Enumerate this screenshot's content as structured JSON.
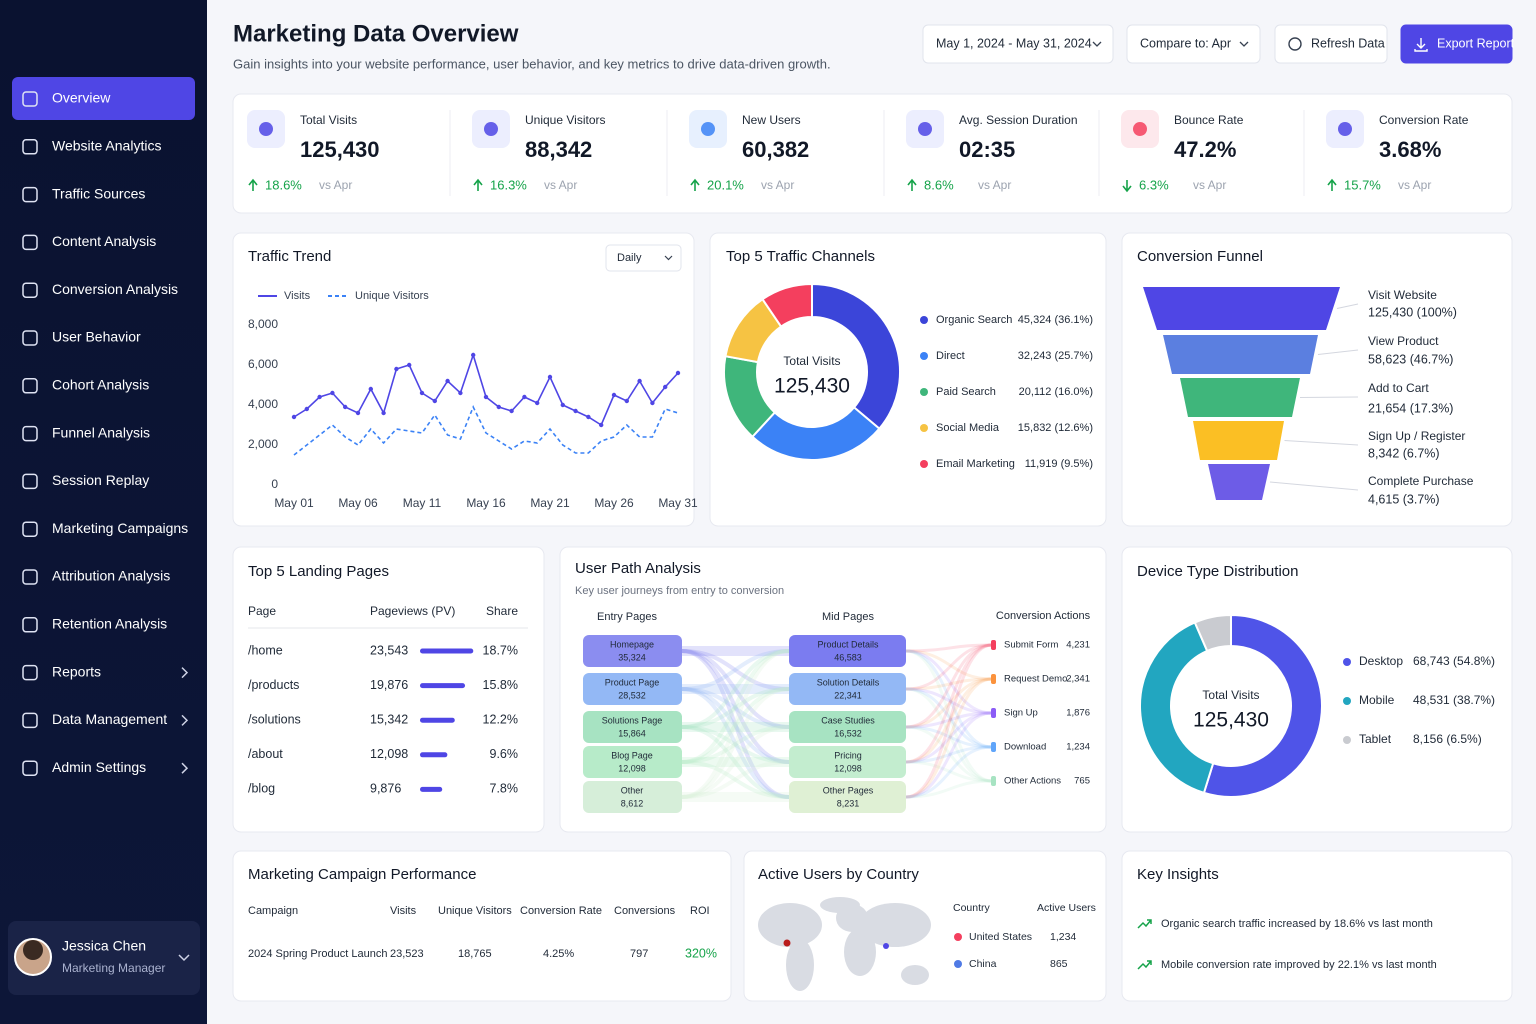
{
  "sidebar": {
    "nav": [
      "Overview",
      "Website Analytics",
      "Traffic Sources",
      "Content Analysis",
      "Conversion Analysis",
      "User Behavior",
      "Cohort Analysis",
      "Funnel Analysis",
      "Session Replay",
      "Marketing Campaigns",
      "Attribution Analysis",
      "Retention Analysis",
      "Reports",
      "Data Management",
      "Admin Settings"
    ],
    "user": {
      "name": "Jessica Chen",
      "role": "Marketing Manager"
    }
  },
  "header": {
    "title": "Marketing Data Overview",
    "subtitle": "Gain insights into your website performance, user behavior, and key metrics to drive data-driven growth.",
    "date_range": "May 1, 2024 - May 31, 2024",
    "compare": "Compare to: Apr",
    "refresh": "Refresh Data",
    "export": "Export Report"
  },
  "kpis": [
    {
      "label": "Total Visits",
      "value": "125,430",
      "change": "18.6%",
      "trend": "up",
      "compare": "vs Apr"
    },
    {
      "label": "Unique Visitors",
      "value": "88,342",
      "change": "16.3%",
      "trend": "up",
      "compare": "vs Apr"
    },
    {
      "label": "New Users",
      "value": "60,382",
      "change": "20.1%",
      "trend": "up",
      "compare": "vs Apr"
    },
    {
      "label": "Avg. Session Duration",
      "value": "02:35",
      "change": "8.6%",
      "trend": "up",
      "compare": "vs Apr"
    },
    {
      "label": "Bounce Rate",
      "value": "47.2%",
      "change": "6.3%",
      "trend": "down",
      "compare": "vs Apr"
    },
    {
      "label": "Conversion Rate",
      "value": "3.68%",
      "change": "15.7%",
      "trend": "up",
      "compare": "vs Apr"
    }
  ],
  "traffic_trend": {
    "type": "line",
    "title": "Traffic Trend",
    "period": "Daily",
    "categories": [
      "May 01",
      null,
      null,
      null,
      null,
      "May 06",
      null,
      null,
      null,
      null,
      "May 11",
      null,
      null,
      null,
      null,
      "May 16",
      null,
      null,
      null,
      null,
      "May 21",
      null,
      null,
      null,
      null,
      "May 26",
      null,
      null,
      null,
      null,
      "May 31"
    ],
    "series": [
      {
        "name": "Visits",
        "color": "#4f46e5",
        "values": [
          3400,
          3800,
          4400,
          4600,
          3900,
          3600,
          4800,
          3600,
          5800,
          6000,
          4600,
          4200,
          5200,
          4600,
          6500,
          4400,
          3900,
          3700,
          4400,
          4100,
          5400,
          4000,
          3700,
          3400,
          3000,
          4500,
          4200,
          5200,
          4100,
          4900,
          5600
        ]
      },
      {
        "name": "Unique Visitors",
        "color": "#3b82f6",
        "dashed": true,
        "values": [
          1500,
          2000,
          2500,
          3000,
          2400,
          2000,
          2800,
          2100,
          2800,
          2700,
          2600,
          3500,
          2500,
          2300,
          3900,
          2600,
          2200,
          1800,
          2200,
          2100,
          2800,
          2000,
          1600,
          1600,
          2200,
          2400,
          3000,
          2400,
          2400,
          3800,
          3600
        ]
      }
    ],
    "ylim": [
      0,
      8000
    ],
    "yticks": [
      0,
      {
        "value": 2000,
        "label": "2,000"
      },
      {
        "value": 4000,
        "label": "4,000"
      },
      {
        "value": 6000,
        "label": "6,000"
      },
      {
        "value": 8000,
        "label": "8,000"
      }
    ],
    "grid": false
  },
  "traffic_channels": {
    "type": "pie",
    "title": "Top 5 Traffic Channels",
    "center_label": "Total Visits",
    "center_value": "125,430",
    "categories": [
      "Organic Search",
      "Direct",
      "Paid Search",
      "Social Media",
      "Email Marketing"
    ],
    "colors": [
      "#3b45d9",
      "#3b82f6",
      "#3fb67b",
      "#f6c343",
      "#f43f5e"
    ],
    "values": [
      45324,
      32243,
      20112,
      15832,
      11919
    ],
    "value_labels": [
      "45,324 (36.1%)",
      "32,243 (25.7%)",
      "20,112 (16.0%)",
      "15,832 (12.6%)",
      "11,919  (9.5%)"
    ]
  },
  "conversion_funnel": {
    "type": "funnel",
    "title": "Conversion Funnel",
    "categories": [
      "Visit Website",
      "View Product",
      "Add to Cart",
      "Sign Up / Register",
      "Complete Purchase"
    ],
    "colors": [
      "#4f46e5",
      "#5b7fe0",
      "#3fb67b",
      "#fbbf24",
      "#6d5ce7"
    ],
    "values": [
      125430,
      58623,
      21654,
      8342,
      4615
    ],
    "value_labels": [
      "125,430 (100%)",
      "58,623 (46.7%)",
      "21,654 (17.3%)",
      "8,342 (6.7%)",
      "4,615 (3.7%)"
    ]
  },
  "landing_pages": {
    "title": "Top 5 Landing Pages",
    "columns": [
      "Page",
      "Pageviews (PV)",
      "Share"
    ],
    "pages": [
      "/home",
      "/products",
      "/solutions",
      "/about",
      "/blog"
    ],
    "pageviews": [
      "23,543",
      "19,876",
      "15,342",
      "12,098",
      "9,876"
    ],
    "share": [
      18.7,
      15.8,
      12.2,
      9.6,
      7.8
    ],
    "share_labels": [
      "18.7%",
      "15.8%",
      "12.2%",
      "9.6%",
      "7.8%"
    ],
    "color": "#4f46e5"
  },
  "user_path": {
    "title": "User Path Analysis",
    "subtitle": "Key user journeys from entry to conversion",
    "columns": [
      "Entry Pages",
      "Mid Pages",
      "Conversion Actions"
    ],
    "entry": [
      {
        "label": "Homepage",
        "value": "35,324"
      },
      {
        "label": "Product Page",
        "value": "28,532"
      },
      {
        "label": "Solutions Page",
        "value": "15,864"
      },
      {
        "label": "Blog Page",
        "value": "12,098"
      },
      {
        "label": "Other",
        "value": "8,612"
      }
    ],
    "mid": [
      {
        "label": "Product Details",
        "value": "46,583"
      },
      {
        "label": "Solution Details",
        "value": "22,341"
      },
      {
        "label": "Case Studies",
        "value": "16,532"
      },
      {
        "label": "Pricing",
        "value": "12,098"
      },
      {
        "label": "Other Pages",
        "value": "8,231"
      }
    ],
    "actions": [
      {
        "label": "Submit Form",
        "value": "4,231"
      },
      {
        "label": "Request Demo",
        "value": "2,341"
      },
      {
        "label": "Sign Up",
        "value": "1,876"
      },
      {
        "label": "Download",
        "value": "1,234"
      },
      {
        "label": "Other Actions",
        "value": "765"
      }
    ]
  },
  "device": {
    "type": "pie",
    "title": "Device Type Distribution",
    "center_label": "Total Visits",
    "center_value": "125,430",
    "categories": [
      "Desktop",
      "Mobile",
      "Tablet"
    ],
    "colors": [
      "#4f54e8",
      "#22a6c0",
      "#c9cbd0"
    ],
    "values": [
      68743,
      48531,
      8156
    ],
    "value_labels": [
      "68,743 (54.8%)",
      "48,531 (38.7%)",
      "8,156 (6.5%)"
    ]
  },
  "campaigns": {
    "title": "Marketing Campaign Performance",
    "columns": [
      "Campaign",
      "Visits",
      "Unique Visitors",
      "Conversion Rate",
      "Conversions",
      "ROI"
    ],
    "rows": [
      [
        "2024 Spring Product Launch",
        "23,523",
        "18,765",
        "4.25%",
        "797",
        "320%"
      ]
    ]
  },
  "countries": {
    "title": "Active Users by Country",
    "columns": [
      "Country",
      "Active Users"
    ],
    "rows": [
      [
        "United States",
        "1,234"
      ],
      [
        "China",
        "865"
      ]
    ]
  },
  "insights": {
    "title": "Key Insights",
    "items": [
      "Organic search traffic increased by 18.6% vs last month",
      "Mobile conversion rate improved by 22.1% vs last month"
    ]
  }
}
